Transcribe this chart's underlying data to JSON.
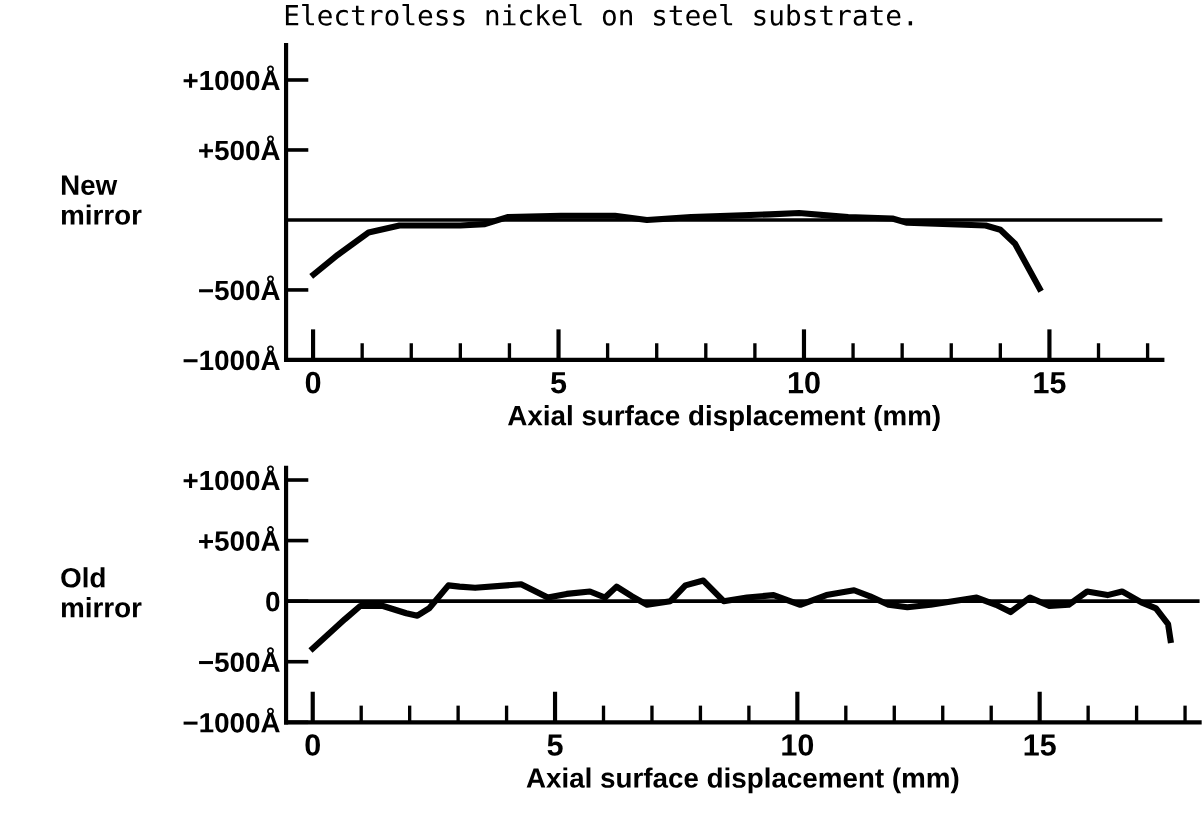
{
  "chart_data": [
    {
      "type": "line",
      "title": "Electroless nickel on steel substrate.",
      "ylabel": "New\nmirror",
      "xlabel": "Axial surface displacement (mm)",
      "color": "#000000",
      "grid": false,
      "legend": false,
      "x": [
        0.01,
        0.5,
        1.13,
        1.76,
        3.0,
        3.5,
        3.96,
        5.05,
        6.15,
        6.8,
        7.7,
        9.3,
        9.9,
        10.9,
        11.8,
        12.1,
        13.7,
        14.0,
        14.3,
        14.8
      ],
      "values": [
        -390,
        -250,
        -90,
        -40,
        -40,
        -30,
        20,
        30,
        30,
        0,
        20,
        40,
        50,
        20,
        10,
        -20,
        -40,
        -70,
        -170,
        -490
      ],
      "xlim": [
        -0.55,
        17.3
      ],
      "ylim": [
        -1000,
        1250
      ],
      "xticks": [
        0,
        {
          "value": 1,
          "label": null
        },
        {
          "value": 2,
          "label": null
        },
        {
          "value": 3,
          "label": null
        },
        {
          "value": 4,
          "label": null
        },
        5,
        {
          "value": 6,
          "label": null
        },
        {
          "value": 7,
          "label": null
        },
        {
          "value": 8,
          "label": null
        },
        {
          "value": 9,
          "label": null
        },
        10,
        {
          "value": 11,
          "label": null
        },
        {
          "value": 12,
          "label": null
        },
        {
          "value": 13,
          "label": null
        },
        {
          "value": 14,
          "label": null
        },
        15,
        {
          "value": 16,
          "label": null
        },
        {
          "value": 17,
          "label": null
        }
      ],
      "yticks": [
        {
          "value": -1000,
          "label": "−1000Å"
        },
        {
          "value": -500,
          "label": "−500Å"
        },
        {
          "value": 500,
          "label": "+500Å"
        },
        {
          "value": 1000,
          "label": "+1000Å"
        }
      ],
      "ref_lines": [
        {
          "axis": "y",
          "value": 0,
          "label": null,
          "color": "#000000"
        }
      ]
    },
    {
      "type": "line",
      "ylabel": "Old\nmirror",
      "xlabel": "Axial surface displacement (mm)",
      "color": "#000000",
      "grid": false,
      "legend": false,
      "x": [
        0,
        0.66,
        0.98,
        1.45,
        1.93,
        2.16,
        2.4,
        2.8,
        3.03,
        3.35,
        4.3,
        4.85,
        5.24,
        5.72,
        6.03,
        6.27,
        6.59,
        6.9,
        7.38,
        7.69,
        8.06,
        8.48,
        8.96,
        9.51,
        10.06,
        10.6,
        11.17,
        11.5,
        11.88,
        12.27,
        12.75,
        13.7,
        14.1,
        14.4,
        14.8,
        15.2,
        15.6,
        15.98,
        16.4,
        16.7,
        17.1,
        17.4,
        17.65,
        17.7
      ],
      "values": [
        -390,
        -150,
        -40,
        -40,
        -100,
        -120,
        -60,
        130,
        120,
        110,
        140,
        30,
        60,
        80,
        30,
        120,
        40,
        -30,
        0,
        130,
        170,
        0,
        30,
        50,
        -30,
        50,
        90,
        40,
        -30,
        -50,
        -30,
        30,
        -30,
        -90,
        30,
        -40,
        -30,
        80,
        50,
        80,
        -10,
        -60,
        -190,
        -320
      ],
      "xlim": [
        -0.55,
        18.3
      ],
      "ylim": [
        -1000,
        1100
      ],
      "xticks": [
        0,
        {
          "value": 1,
          "label": null
        },
        {
          "value": 2,
          "label": null
        },
        {
          "value": 3,
          "label": null
        },
        {
          "value": 4,
          "label": null
        },
        5,
        {
          "value": 6,
          "label": null
        },
        {
          "value": 7,
          "label": null
        },
        {
          "value": 8,
          "label": null
        },
        {
          "value": 9,
          "label": null
        },
        10,
        {
          "value": 11,
          "label": null
        },
        {
          "value": 12,
          "label": null
        },
        {
          "value": 13,
          "label": null
        },
        {
          "value": 14,
          "label": null
        },
        15,
        {
          "value": 16,
          "label": null
        },
        {
          "value": 17,
          "label": null
        },
        {
          "value": 18,
          "label": null
        }
      ],
      "yticks": [
        {
          "value": -1000,
          "label": "−1000Å"
        },
        {
          "value": -500,
          "label": "−500Å"
        },
        0,
        {
          "value": 500,
          "label": "+500Å"
        },
        {
          "value": 1000,
          "label": "+1000Å"
        }
      ],
      "ref_lines": [
        {
          "axis": "y",
          "value": 0,
          "label": null,
          "color": "#000000"
        }
      ]
    }
  ]
}
